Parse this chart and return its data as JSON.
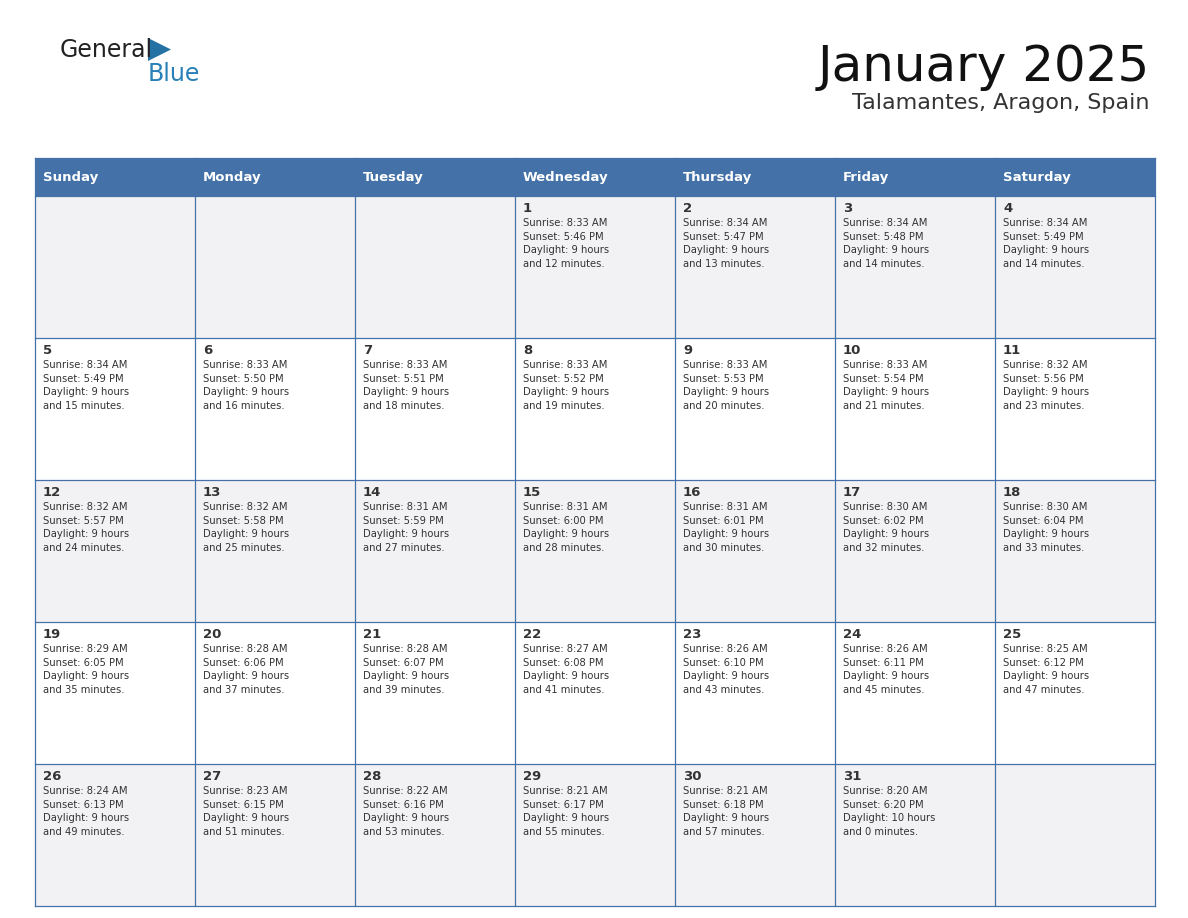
{
  "title": "January 2025",
  "subtitle": "Talamantes, Aragon, Spain",
  "header_color": "#4472a8",
  "header_text_color": "#ffffff",
  "border_color": "#4472a8",
  "text_color": "#333333",
  "row_bg_even": "#f2f2f4",
  "row_bg_odd": "#ffffff",
  "days_of_week": [
    "Sunday",
    "Monday",
    "Tuesday",
    "Wednesday",
    "Thursday",
    "Friday",
    "Saturday"
  ],
  "weeks": [
    [
      {
        "day": null,
        "info": ""
      },
      {
        "day": null,
        "info": ""
      },
      {
        "day": null,
        "info": ""
      },
      {
        "day": 1,
        "info": "Sunrise: 8:33 AM\nSunset: 5:46 PM\nDaylight: 9 hours\nand 12 minutes."
      },
      {
        "day": 2,
        "info": "Sunrise: 8:34 AM\nSunset: 5:47 PM\nDaylight: 9 hours\nand 13 minutes."
      },
      {
        "day": 3,
        "info": "Sunrise: 8:34 AM\nSunset: 5:48 PM\nDaylight: 9 hours\nand 14 minutes."
      },
      {
        "day": 4,
        "info": "Sunrise: 8:34 AM\nSunset: 5:49 PM\nDaylight: 9 hours\nand 14 minutes."
      }
    ],
    [
      {
        "day": 5,
        "info": "Sunrise: 8:34 AM\nSunset: 5:49 PM\nDaylight: 9 hours\nand 15 minutes."
      },
      {
        "day": 6,
        "info": "Sunrise: 8:33 AM\nSunset: 5:50 PM\nDaylight: 9 hours\nand 16 minutes."
      },
      {
        "day": 7,
        "info": "Sunrise: 8:33 AM\nSunset: 5:51 PM\nDaylight: 9 hours\nand 18 minutes."
      },
      {
        "day": 8,
        "info": "Sunrise: 8:33 AM\nSunset: 5:52 PM\nDaylight: 9 hours\nand 19 minutes."
      },
      {
        "day": 9,
        "info": "Sunrise: 8:33 AM\nSunset: 5:53 PM\nDaylight: 9 hours\nand 20 minutes."
      },
      {
        "day": 10,
        "info": "Sunrise: 8:33 AM\nSunset: 5:54 PM\nDaylight: 9 hours\nand 21 minutes."
      },
      {
        "day": 11,
        "info": "Sunrise: 8:32 AM\nSunset: 5:56 PM\nDaylight: 9 hours\nand 23 minutes."
      }
    ],
    [
      {
        "day": 12,
        "info": "Sunrise: 8:32 AM\nSunset: 5:57 PM\nDaylight: 9 hours\nand 24 minutes."
      },
      {
        "day": 13,
        "info": "Sunrise: 8:32 AM\nSunset: 5:58 PM\nDaylight: 9 hours\nand 25 minutes."
      },
      {
        "day": 14,
        "info": "Sunrise: 8:31 AM\nSunset: 5:59 PM\nDaylight: 9 hours\nand 27 minutes."
      },
      {
        "day": 15,
        "info": "Sunrise: 8:31 AM\nSunset: 6:00 PM\nDaylight: 9 hours\nand 28 minutes."
      },
      {
        "day": 16,
        "info": "Sunrise: 8:31 AM\nSunset: 6:01 PM\nDaylight: 9 hours\nand 30 minutes."
      },
      {
        "day": 17,
        "info": "Sunrise: 8:30 AM\nSunset: 6:02 PM\nDaylight: 9 hours\nand 32 minutes."
      },
      {
        "day": 18,
        "info": "Sunrise: 8:30 AM\nSunset: 6:04 PM\nDaylight: 9 hours\nand 33 minutes."
      }
    ],
    [
      {
        "day": 19,
        "info": "Sunrise: 8:29 AM\nSunset: 6:05 PM\nDaylight: 9 hours\nand 35 minutes."
      },
      {
        "day": 20,
        "info": "Sunrise: 8:28 AM\nSunset: 6:06 PM\nDaylight: 9 hours\nand 37 minutes."
      },
      {
        "day": 21,
        "info": "Sunrise: 8:28 AM\nSunset: 6:07 PM\nDaylight: 9 hours\nand 39 minutes."
      },
      {
        "day": 22,
        "info": "Sunrise: 8:27 AM\nSunset: 6:08 PM\nDaylight: 9 hours\nand 41 minutes."
      },
      {
        "day": 23,
        "info": "Sunrise: 8:26 AM\nSunset: 6:10 PM\nDaylight: 9 hours\nand 43 minutes."
      },
      {
        "day": 24,
        "info": "Sunrise: 8:26 AM\nSunset: 6:11 PM\nDaylight: 9 hours\nand 45 minutes."
      },
      {
        "day": 25,
        "info": "Sunrise: 8:25 AM\nSunset: 6:12 PM\nDaylight: 9 hours\nand 47 minutes."
      }
    ],
    [
      {
        "day": 26,
        "info": "Sunrise: 8:24 AM\nSunset: 6:13 PM\nDaylight: 9 hours\nand 49 minutes."
      },
      {
        "day": 27,
        "info": "Sunrise: 8:23 AM\nSunset: 6:15 PM\nDaylight: 9 hours\nand 51 minutes."
      },
      {
        "day": 28,
        "info": "Sunrise: 8:22 AM\nSunset: 6:16 PM\nDaylight: 9 hours\nand 53 minutes."
      },
      {
        "day": 29,
        "info": "Sunrise: 8:21 AM\nSunset: 6:17 PM\nDaylight: 9 hours\nand 55 minutes."
      },
      {
        "day": 30,
        "info": "Sunrise: 8:21 AM\nSunset: 6:18 PM\nDaylight: 9 hours\nand 57 minutes."
      },
      {
        "day": 31,
        "info": "Sunrise: 8:20 AM\nSunset: 6:20 PM\nDaylight: 10 hours\nand 0 minutes."
      },
      {
        "day": null,
        "info": ""
      }
    ]
  ],
  "logo_text1": "General",
  "logo_text2": "Blue",
  "logo_color1": "#222222",
  "logo_color2": "#2980b9",
  "logo_triangle_color": "#2472a4"
}
